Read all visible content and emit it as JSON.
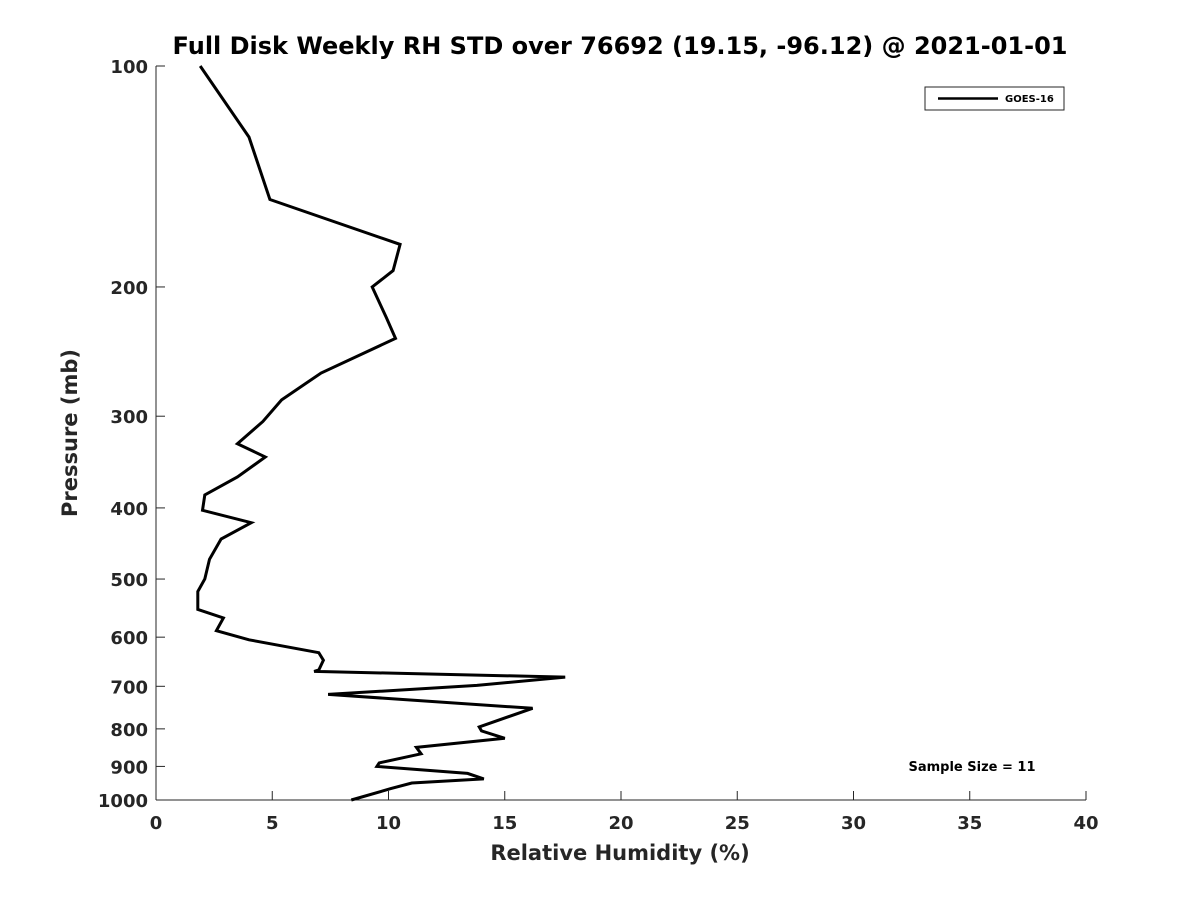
{
  "chart_data": {
    "type": "line",
    "title": "Full Disk Weekly RH STD over 76692 (19.15, -96.12) @ 2021-01-01",
    "xlabel": "Relative Humidity (%)",
    "ylabel": "Pressure (mb)",
    "xlim": [
      0,
      40
    ],
    "ylim": [
      100,
      1000
    ],
    "y_scale": "log",
    "y_reversed": true,
    "xticks": [
      0,
      5,
      10,
      15,
      20,
      25,
      30,
      35,
      40
    ],
    "yticks": [
      100,
      200,
      300,
      400,
      500,
      600,
      700,
      800,
      900,
      1000
    ],
    "grid": false,
    "legend_position": "top-right",
    "annotation": "Sample Size = 11",
    "series": [
      {
        "name": "GOES-16",
        "color": "#000000",
        "x": [
          1.9,
          4.0,
          4.9,
          10.5,
          10.2,
          9.3,
          9.9,
          10.3,
          7.1,
          5.4,
          4.6,
          3.5,
          4.7,
          3.5,
          2.1,
          2.0,
          4.1,
          2.8,
          2.3,
          2.1,
          1.8,
          1.8,
          2.9,
          2.6,
          4.0,
          7.0,
          7.2,
          7.0,
          6.8,
          17.6,
          13.8,
          7.4,
          16.2,
          13.9,
          14.0,
          15.0,
          11.2,
          11.4,
          9.6,
          9.5,
          13.4,
          14.1,
          11.0,
          10.1,
          8.4
        ],
        "y": [
          100,
          125,
          152,
          175,
          190,
          200,
          220,
          235,
          262,
          285,
          305,
          327,
          341,
          363,
          384,
          403,
          419,
          441,
          470,
          500,
          520,
          550,
          565,
          588,
          605,
          630,
          645,
          665,
          668,
          680,
          698,
          718,
          750,
          795,
          805,
          824,
          848,
          865,
          890,
          900,
          920,
          936,
          948,
          965,
          1000
        ]
      }
    ]
  }
}
